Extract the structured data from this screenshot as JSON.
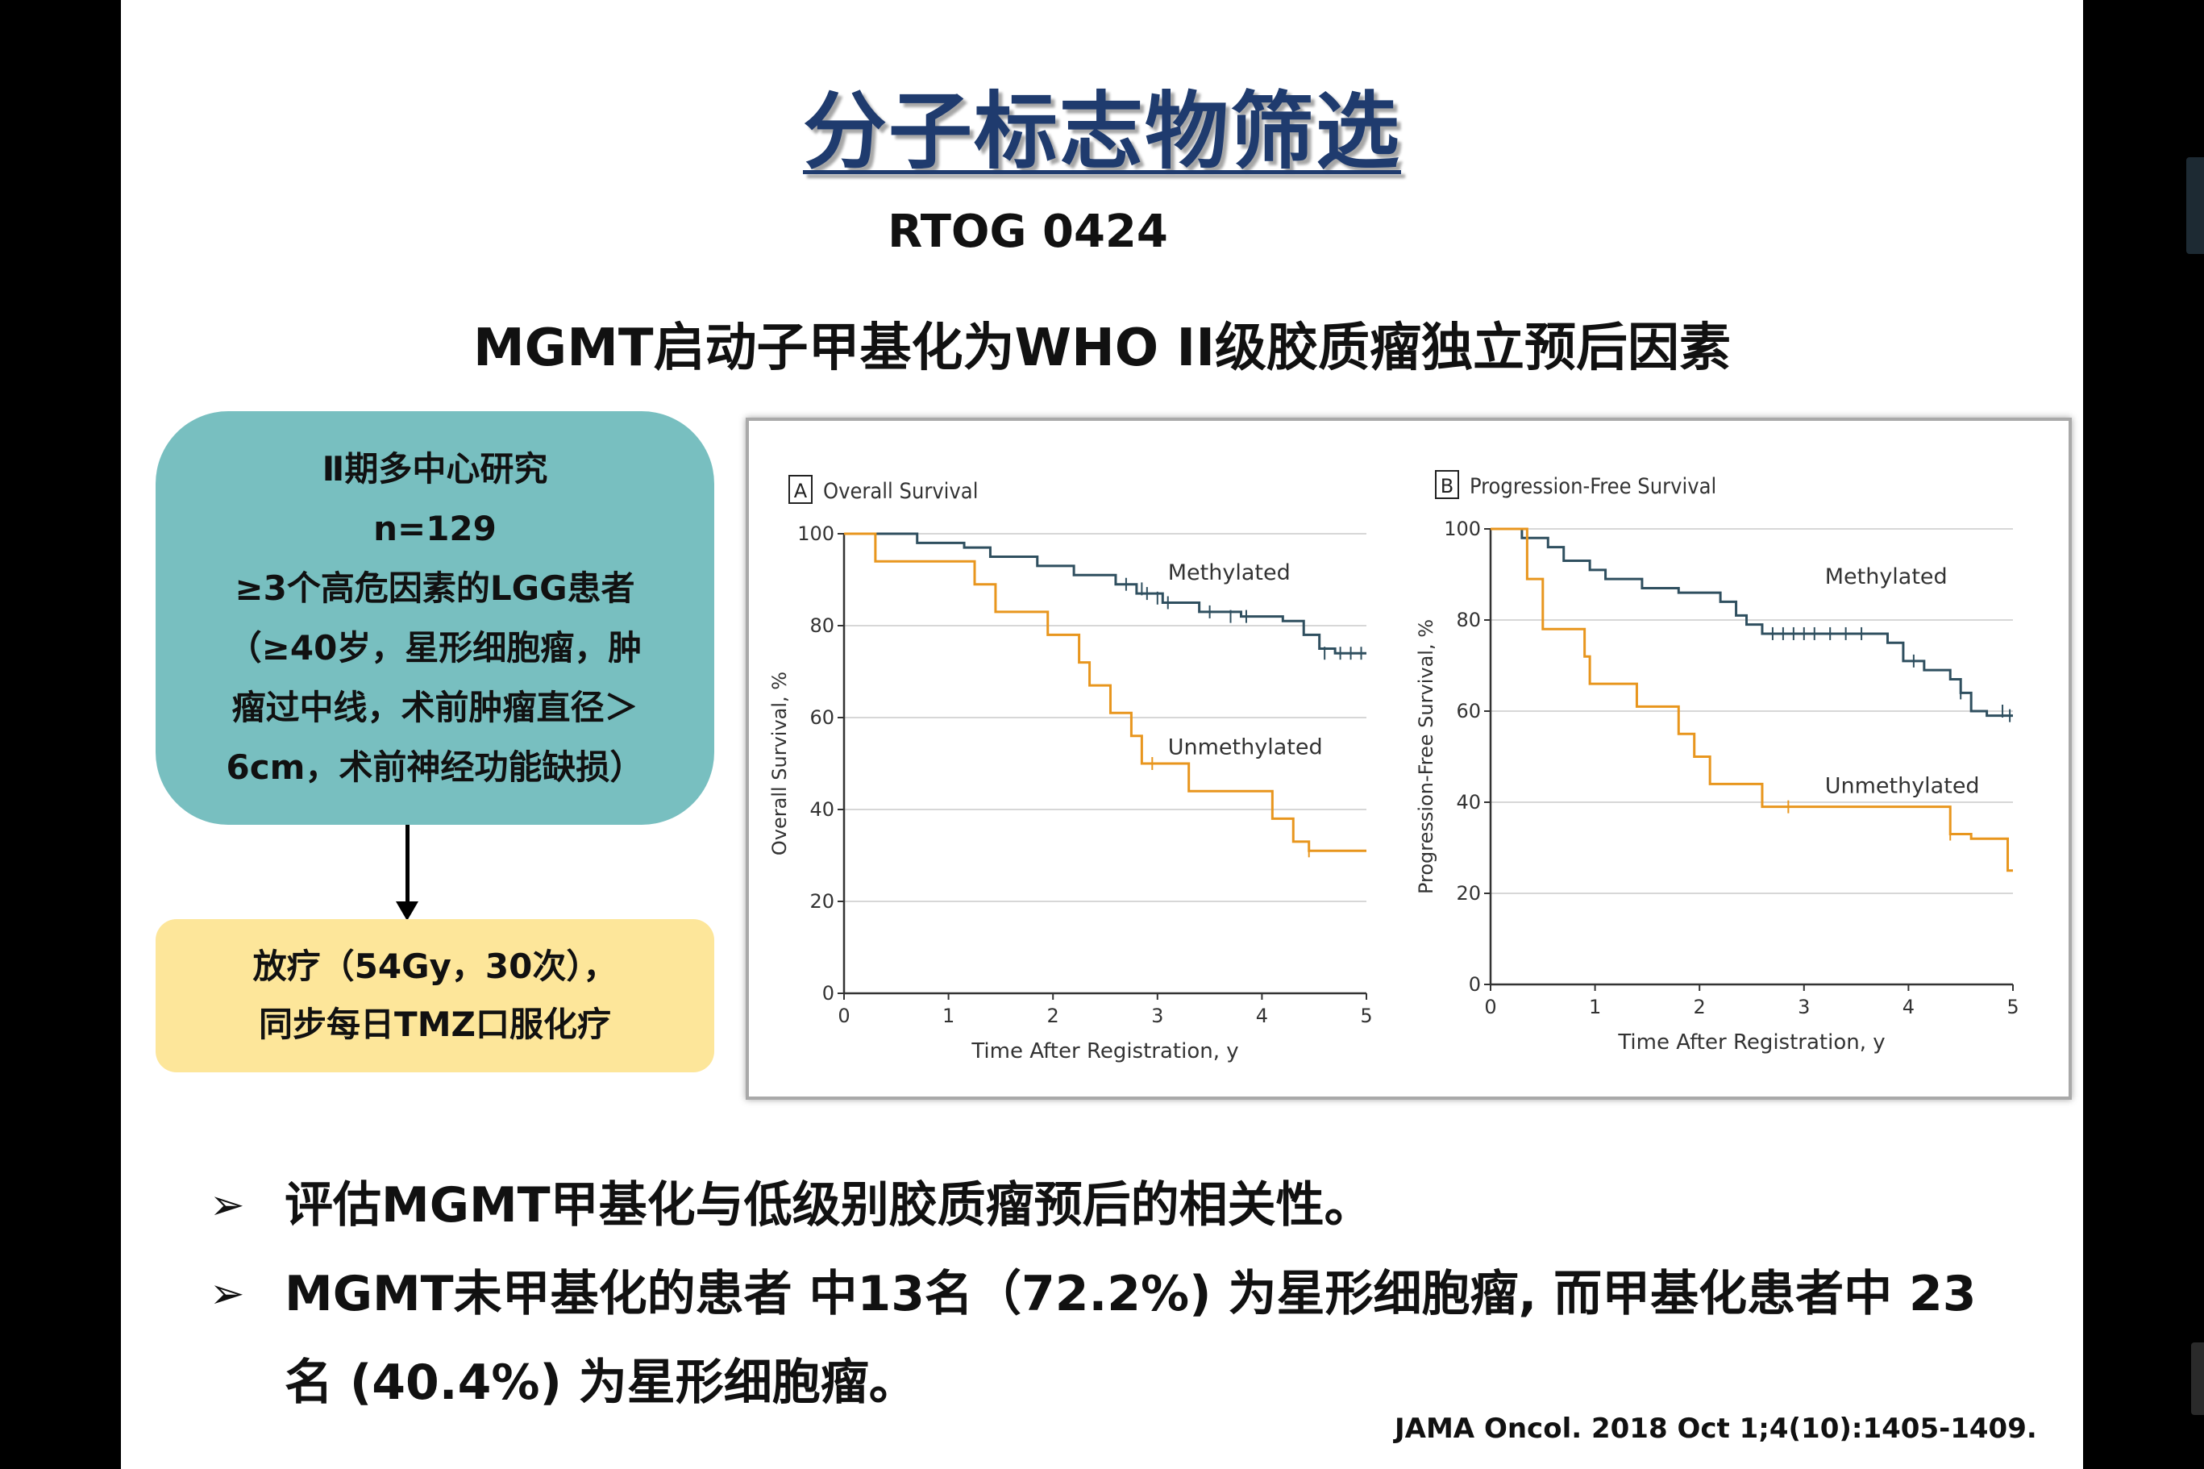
{
  "title": "分子标志物筛选",
  "subtitle": "RTOG 0424",
  "headline": "MGMT启动子甲基化为WHO II级胶质瘤独立预后因素",
  "study_box": {
    "lines": [
      "Ⅱ期多中心研究",
      "n=129",
      "≥3个高危因素的LGG患者",
      "（≥40岁，星形细胞瘤，肿",
      "瘤过中线，术前肿瘤直径＞",
      "6cm，术前神经功能缺损）"
    ],
    "color": "#78bfc0"
  },
  "treatment_box": {
    "lines": [
      "放疗（54Gy，30次），",
      "同步每日TMZ口服化疗"
    ],
    "color": "#fde69a"
  },
  "chart_data": [
    {
      "type": "line",
      "panel": "A",
      "title": "Overall Survival",
      "xlabel": "Time After Registration, y",
      "ylabel": "Overall Survival, %",
      "xlim": [
        0,
        5
      ],
      "ylim": [
        0,
        100
      ],
      "x_ticks": [
        0,
        1,
        2,
        3,
        4,
        5
      ],
      "y_ticks": [
        0,
        20,
        40,
        60,
        80,
        100
      ],
      "grid": "horizontal",
      "series": [
        {
          "name": "Methylated",
          "color": "#2f4f5f",
          "step": [
            [
              0,
              100
            ],
            [
              0.7,
              98
            ],
            [
              1.15,
              97
            ],
            [
              1.4,
              95
            ],
            [
              1.85,
              93
            ],
            [
              2.2,
              91
            ],
            [
              2.6,
              89
            ],
            [
              2.8,
              87
            ],
            [
              3.05,
              85
            ],
            [
              3.4,
              83
            ],
            [
              3.8,
              82
            ],
            [
              4.2,
              81
            ],
            [
              4.4,
              78
            ],
            [
              4.55,
              75
            ],
            [
              4.7,
              74
            ],
            [
              5,
              74
            ]
          ],
          "censored": [
            [
              2.7,
              89
            ],
            [
              2.85,
              88
            ],
            [
              2.9,
              87
            ],
            [
              3.0,
              86
            ],
            [
              3.1,
              85
            ],
            [
              3.5,
              83
            ],
            [
              3.7,
              82
            ],
            [
              3.85,
              82
            ],
            [
              4.6,
              74
            ],
            [
              4.75,
              74
            ],
            [
              4.85,
              74
            ],
            [
              4.95,
              74
            ]
          ]
        },
        {
          "name": "Unmethylated",
          "color": "#e8961e",
          "step": [
            [
              0,
              100
            ],
            [
              0.3,
              94
            ],
            [
              1.25,
              89
            ],
            [
              1.45,
              83
            ],
            [
              1.95,
              78
            ],
            [
              2.25,
              72
            ],
            [
              2.35,
              67
            ],
            [
              2.55,
              61
            ],
            [
              2.75,
              56
            ],
            [
              2.85,
              50
            ],
            [
              3.3,
              44
            ],
            [
              4.1,
              38
            ],
            [
              4.3,
              33
            ],
            [
              4.45,
              31
            ],
            [
              5,
              31
            ]
          ],
          "censored": [
            [
              2.95,
              50
            ],
            [
              4.45,
              31
            ]
          ]
        }
      ]
    },
    {
      "type": "line",
      "panel": "B",
      "title": "Progression-Free Survival",
      "xlabel": "Time After Registration, y",
      "ylabel": "Progression-Free Survival, %",
      "xlim": [
        0,
        5
      ],
      "ylim": [
        0,
        100
      ],
      "x_ticks": [
        0,
        1,
        2,
        3,
        4,
        5
      ],
      "y_ticks": [
        0,
        20,
        40,
        60,
        80,
        100
      ],
      "grid": "horizontal",
      "series": [
        {
          "name": "Methylated",
          "color": "#2f4f5f",
          "step": [
            [
              0,
              100
            ],
            [
              0.3,
              98
            ],
            [
              0.55,
              96
            ],
            [
              0.7,
              93
            ],
            [
              0.95,
              91
            ],
            [
              1.1,
              89
            ],
            [
              1.45,
              87
            ],
            [
              1.8,
              86
            ],
            [
              2.2,
              84
            ],
            [
              2.35,
              81
            ],
            [
              2.45,
              79
            ],
            [
              2.6,
              77
            ],
            [
              3.8,
              75
            ],
            [
              3.95,
              71
            ],
            [
              4.15,
              69
            ],
            [
              4.4,
              67
            ],
            [
              4.5,
              64
            ],
            [
              4.6,
              60
            ],
            [
              4.75,
              59
            ],
            [
              5,
              59
            ]
          ],
          "censored": [
            [
              2.7,
              77
            ],
            [
              2.8,
              77
            ],
            [
              2.9,
              77
            ],
            [
              3.0,
              77
            ],
            [
              3.1,
              77
            ],
            [
              3.25,
              77
            ],
            [
              3.4,
              77
            ],
            [
              3.55,
              77
            ],
            [
              4.05,
              71
            ],
            [
              4.5,
              64
            ],
            [
              4.9,
              60
            ],
            [
              4.97,
              59
            ]
          ]
        },
        {
          "name": "Unmethylated",
          "color": "#e8961e",
          "step": [
            [
              0,
              100
            ],
            [
              0.35,
              89
            ],
            [
              0.5,
              78
            ],
            [
              0.9,
              72
            ],
            [
              0.95,
              66
            ],
            [
              1.4,
              61
            ],
            [
              1.8,
              55
            ],
            [
              1.95,
              50
            ],
            [
              2.1,
              44
            ],
            [
              2.6,
              39
            ],
            [
              3.6,
              39
            ],
            [
              4.4,
              33
            ],
            [
              4.6,
              32
            ],
            [
              4.95,
              25
            ],
            [
              5,
              25
            ]
          ],
          "censored": [
            [
              2.85,
              39
            ],
            [
              4.4,
              33
            ]
          ]
        }
      ]
    }
  ],
  "bullets": [
    "评估MGMT甲基化与低级别胶质瘤预后的相关性。",
    "MGMT未甲基化的患者 中13名（72.2%) 为星形细胞瘤, 而甲基化患者中 23 名 (40.4%) 为星形细胞瘤。"
  ],
  "bullet_marker": "➢",
  "citation": "JAMA Oncol. 2018 Oct 1;4(10):1405-1409."
}
